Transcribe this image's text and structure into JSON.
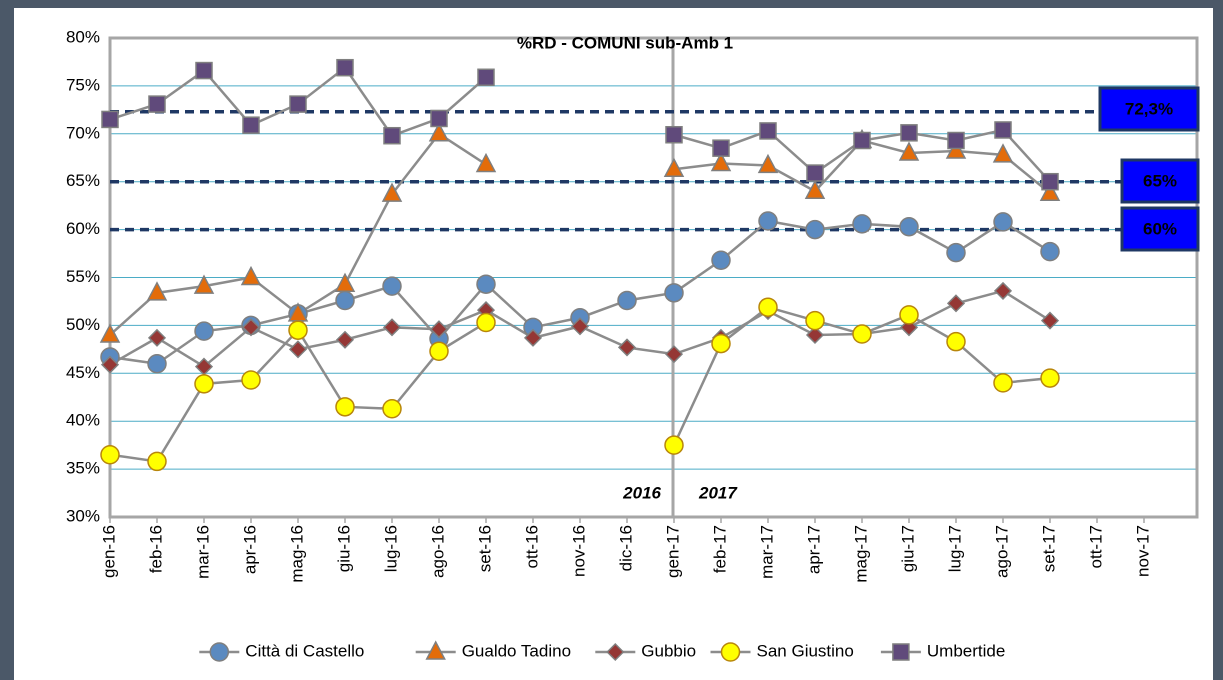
{
  "chart_data": {
    "type": "line",
    "title": "%RD - COMUNI sub-Amb 1",
    "categories": [
      "gen-16",
      "feb-16",
      "mar-16",
      "apr-16",
      "mag-16",
      "giu-16",
      "lug-16",
      "ago-16",
      "set-16",
      "ott-16",
      "nov-16",
      "dic-16",
      "gen-17",
      "feb-17",
      "mar-17",
      "apr-17",
      "mag-17",
      "giu-17",
      "lug-17",
      "ago-17",
      "set-17",
      "ott-17",
      "nov-17"
    ],
    "series": [
      {
        "name": "Città di Castello",
        "color": "#5b8ac0",
        "marker": "circle",
        "values": [
          46.7,
          46.0,
          49.4,
          50.0,
          51.2,
          52.6,
          54.1,
          48.6,
          54.3,
          49.8,
          50.8,
          52.6,
          53.4,
          56.8,
          60.9,
          60.0,
          60.6,
          60.3,
          57.6,
          60.8,
          57.7,
          null,
          null
        ]
      },
      {
        "name": "Gualdo Tadino",
        "color": "#e36c0a",
        "marker": "triangle",
        "values": [
          49.0,
          53.4,
          54.1,
          55.0,
          51.2,
          54.3,
          63.7,
          70.0,
          66.8,
          null,
          null,
          null,
          66.3,
          66.9,
          66.7,
          64.0,
          69.3,
          68.0,
          68.2,
          67.8,
          63.8,
          null,
          null
        ]
      },
      {
        "name": "Gubbio",
        "color": "#953735",
        "marker": "diamond",
        "values": [
          45.9,
          48.7,
          45.7,
          49.8,
          47.5,
          48.5,
          49.8,
          49.6,
          51.6,
          48.7,
          49.9,
          47.7,
          47.0,
          48.7,
          51.5,
          49.0,
          49.1,
          49.8,
          52.3,
          53.6,
          50.5,
          null,
          null
        ]
      },
      {
        "name": "San Giustino",
        "color": "#ffff00",
        "marker": "circle",
        "values": [
          36.5,
          35.8,
          43.9,
          44.3,
          49.5,
          41.5,
          41.3,
          47.3,
          50.3,
          null,
          null,
          null,
          37.5,
          48.1,
          51.9,
          50.5,
          49.1,
          51.1,
          48.3,
          44.0,
          44.5,
          null,
          null
        ]
      },
      {
        "name": "Umbertide",
        "color": "#604a7b",
        "marker": "square",
        "values": [
          71.5,
          73.1,
          76.6,
          70.9,
          73.1,
          76.9,
          69.8,
          71.6,
          75.9,
          null,
          null,
          null,
          69.9,
          68.5,
          70.3,
          65.9,
          69.3,
          70.1,
          69.3,
          70.4,
          65.0,
          null,
          null
        ]
      }
    ],
    "line_color": "#8c8c8c",
    "ylim": [
      30,
      80
    ],
    "yticks": [
      {
        "value": 30,
        "label": "30%"
      },
      {
        "value": 35,
        "label": "35%"
      },
      {
        "value": 40,
        "label": "40%"
      },
      {
        "value": 45,
        "label": "45%"
      },
      {
        "value": 50,
        "label": "50%"
      },
      {
        "value": 55,
        "label": "55%"
      },
      {
        "value": 60,
        "label": "60%"
      },
      {
        "value": 65,
        "label": "65%"
      },
      {
        "value": 70,
        "label": "70%"
      },
      {
        "value": 75,
        "label": "75%"
      },
      {
        "value": 80,
        "label": "80%"
      }
    ],
    "grid": true,
    "reference_lines": [
      {
        "value": 72.3,
        "label": "72,3%"
      },
      {
        "value": 65,
        "label": "65%"
      },
      {
        "value": 60,
        "label": "60%"
      }
    ],
    "annotations": [
      "2016",
      "2017"
    ],
    "legend": "bottom"
  }
}
